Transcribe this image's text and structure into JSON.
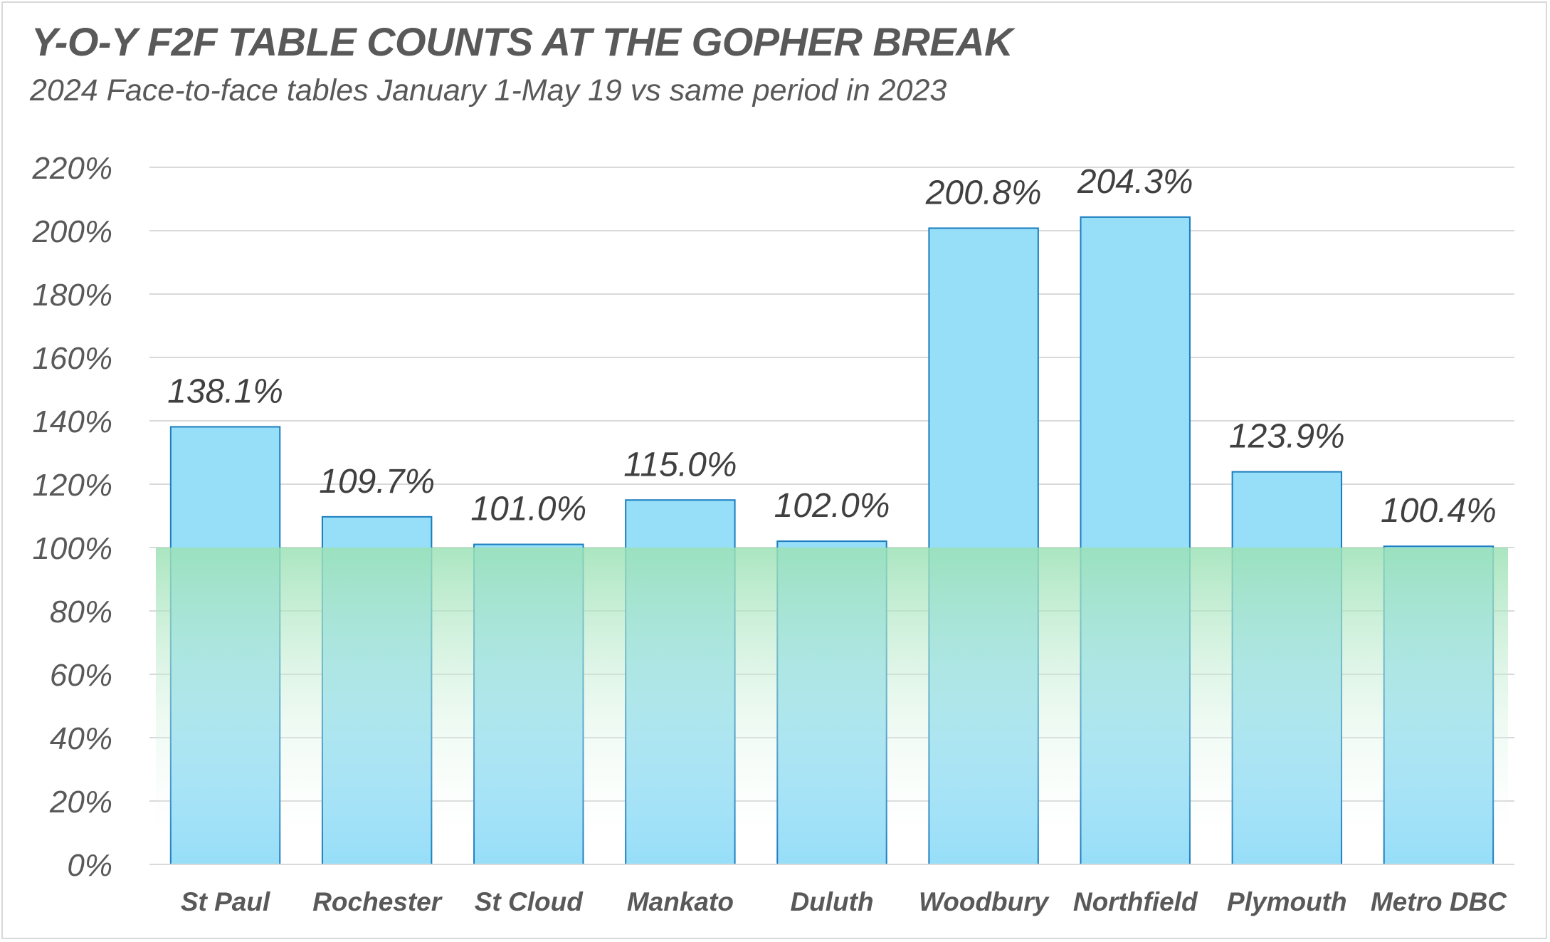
{
  "chart_data": {
    "type": "bar",
    "title": "Y-O-Y F2F TABLE COUNTS AT THE GOPHER BREAK",
    "subtitle": "2024 Face-to-face tables January 1-May 19 vs same period in 2023",
    "categories": [
      "St Paul",
      "Rochester",
      "St Cloud",
      "Mankato",
      "Duluth",
      "Woodbury",
      "Northfield",
      "Plymouth",
      "Metro DBC"
    ],
    "values": [
      138.1,
      109.7,
      101.0,
      115.0,
      102.0,
      200.8,
      204.3,
      123.9,
      100.4
    ],
    "data_labels": [
      "138.1%",
      "109.7%",
      "101.0%",
      "115.0%",
      "102.0%",
      "200.8%",
      "204.3%",
      "123.9%",
      "100.4%"
    ],
    "ylim": [
      0,
      220
    ],
    "y_ticks": [
      0,
      20,
      40,
      60,
      80,
      100,
      120,
      140,
      160,
      180,
      200,
      220
    ],
    "y_tick_labels": [
      "0%",
      "20%",
      "40%",
      "60%",
      "80%",
      "100%",
      "120%",
      "140%",
      "160%",
      "180%",
      "200%",
      "220%"
    ],
    "highlight_band": [
      0,
      100
    ],
    "grid": true,
    "legend": "none",
    "colors": {
      "bar_fill": "#97DEF8",
      "bar_stroke": "#1A7DBF",
      "band_top": "#9BE1B5",
      "gridline": "#D9D9D9",
      "text": "#595959"
    }
  }
}
